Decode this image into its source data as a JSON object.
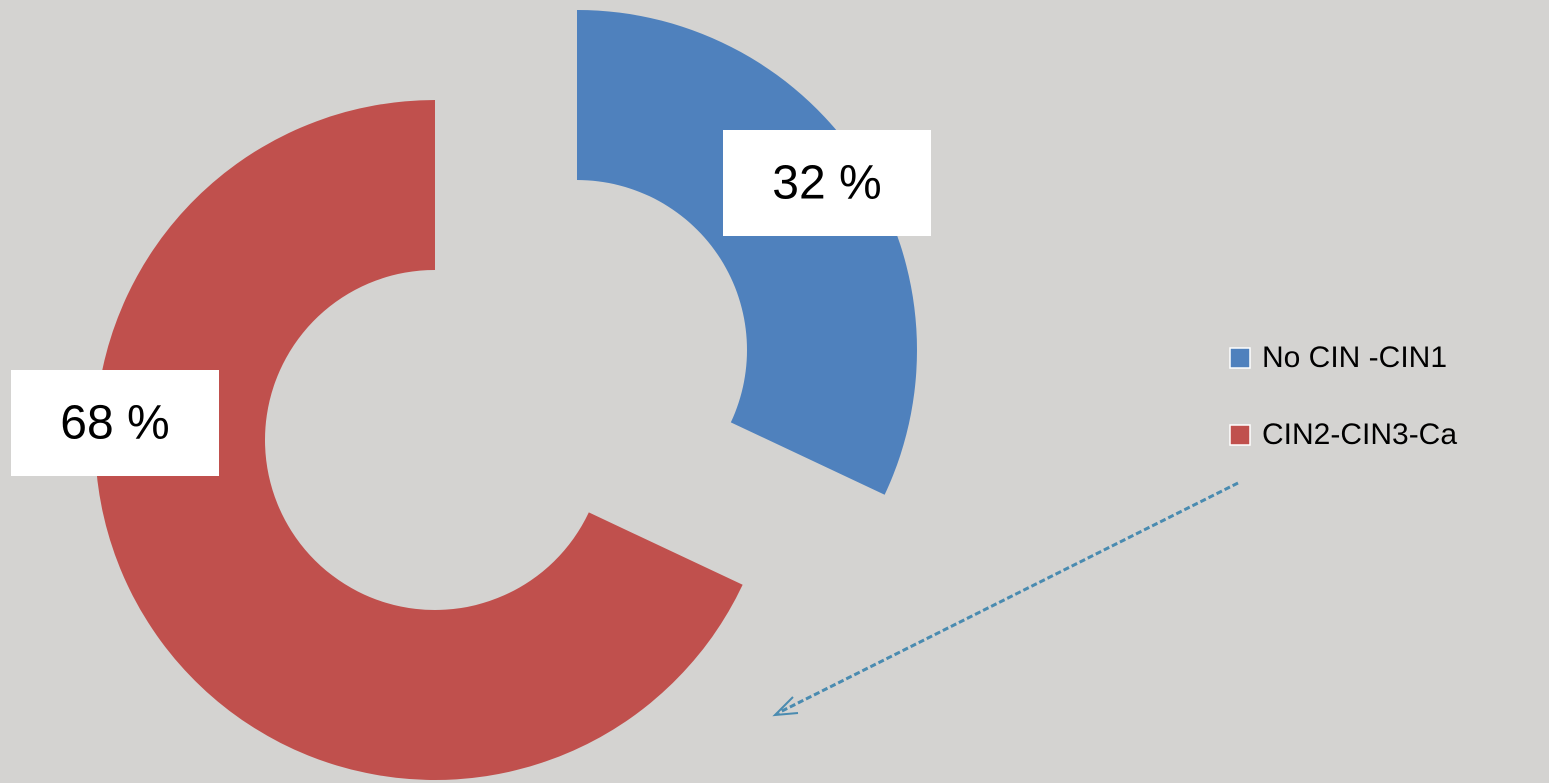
{
  "chart_data": {
    "type": "donut",
    "categories": [
      "No CIN -CIN1",
      "CIN2-CIN3-Ca"
    ],
    "values": [
      32,
      68
    ],
    "value_labels": [
      "32 %",
      "68 %"
    ],
    "colors": [
      "#4f81bd",
      "#c0504d"
    ],
    "legend": "right"
  }
}
